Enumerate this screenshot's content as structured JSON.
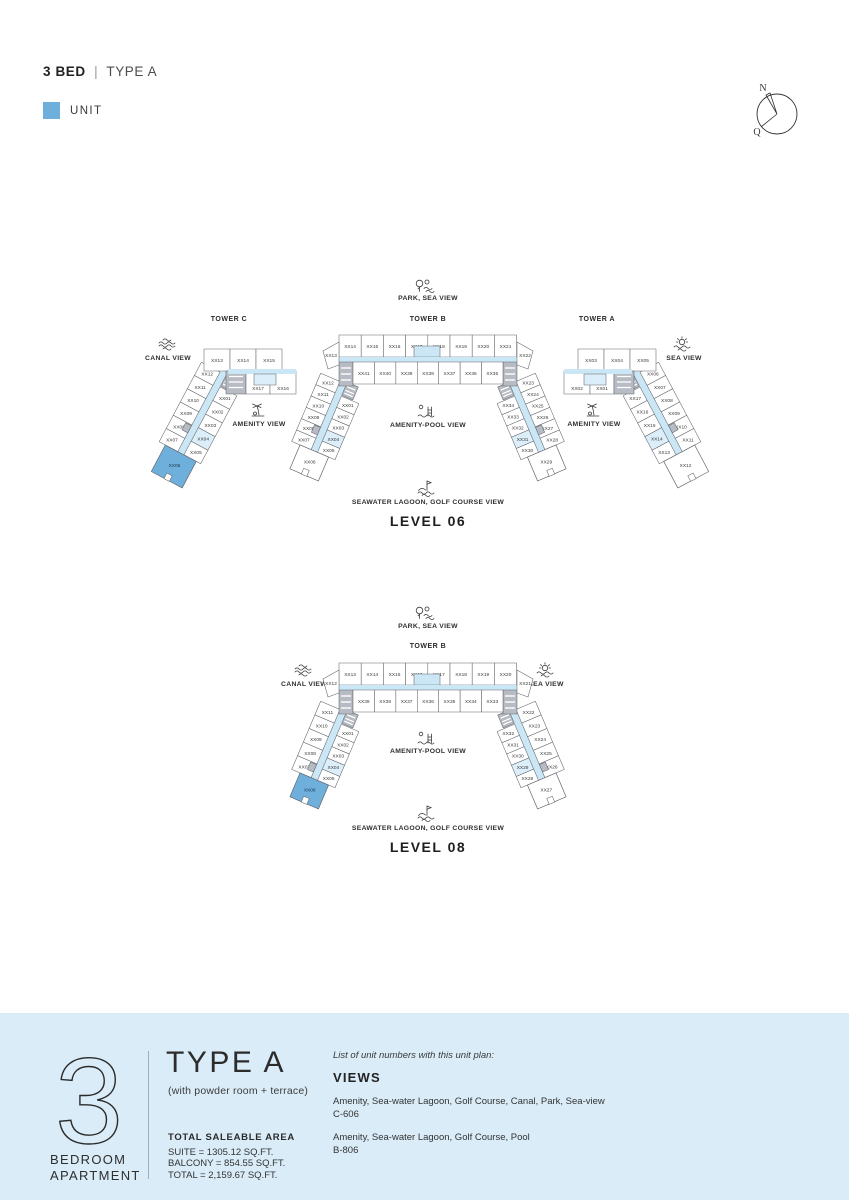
{
  "header": {
    "title_bold": "3 BED",
    "title_divider": "|",
    "title_light": "TYPE A",
    "legend_label": "UNIT"
  },
  "compass": {
    "north": "N",
    "q": "Q"
  },
  "colors": {
    "unit_highlight": "#6fafdc",
    "corridor": "#cbe6f5",
    "unit_light": "#dceef9",
    "core": "#b7bbc3",
    "outline": "#63666c",
    "ink": "#3a3a3a",
    "footer_bg": "#d9ecf8"
  },
  "levels": [
    {
      "name": "LEVEL 06",
      "park_view": "PARK, SEA VIEW",
      "lagoon_view": "SEAWATER LAGOON, GOLF COURSE VIEW",
      "amenity_pool_view": "AMENITY-POOL VIEW",
      "towers": [
        {
          "id": "c",
          "label": "TOWER C",
          "side_view": "CANAL VIEW",
          "amenity_view": "AMENITY VIEW",
          "top_row": [
            "XX13",
            "XX14",
            "XX15"
          ],
          "second_row": [
            "XX17",
            "XX16"
          ],
          "outer": [
            "XX12",
            "XX11",
            "XX10",
            "XX09",
            "XX08",
            "XX07"
          ],
          "inner": [
            "XX01",
            "XX02",
            "XX03",
            "XX04",
            "XX05"
          ],
          "end": "XX06",
          "end_highlight": true
        },
        {
          "id": "b",
          "label": "TOWER B",
          "top_row": [
            "XX14",
            "XX15",
            "XX16",
            "XX17",
            "XX18",
            "XX19",
            "XX20",
            "XX21"
          ],
          "mid_row": [
            "XX41",
            "XX40",
            "XX39",
            "XX38",
            "XX37",
            "XX36",
            "XX35"
          ],
          "left_corner": "XX13",
          "right_corner": "XX22",
          "left_outer": [
            "XX12",
            "XX11",
            "XX10",
            "XX09",
            "XX08",
            "XX07"
          ],
          "left_inner": [
            "XX01",
            "XX02",
            "XX03",
            "XX04",
            "XX05"
          ],
          "left_end": "XX06",
          "left_end_highlight": false,
          "right_outer": [
            "XX23",
            "XX24",
            "XX25",
            "XX26",
            "XX27",
            "XX28"
          ],
          "right_inner": [
            "XX34",
            "XX33",
            "XX32",
            "XX31",
            "XX30"
          ],
          "right_end": "XX29",
          "right_end_highlight": false
        },
        {
          "id": "a",
          "label": "TOWER A",
          "side_view": "SEA VIEW",
          "amenity_view": "AMENITY VIEW",
          "top_row": [
            "XX03",
            "XX04",
            "XX05"
          ],
          "second_row": [
            "XX02",
            "XX01"
          ],
          "outer": [
            "XX06",
            "XX07",
            "XX08",
            "XX09",
            "XX10",
            "XX11"
          ],
          "inner": [
            "XX17",
            "XX16",
            "XX15",
            "XX14",
            "XX13"
          ],
          "end": "XX12",
          "end_highlight": false
        }
      ]
    },
    {
      "name": "LEVEL 08",
      "park_view": "PARK, SEA VIEW",
      "lagoon_view": "SEAWATER LAGOON, GOLF COURSE VIEW",
      "amenity_pool_view": "AMENITY-POOL VIEW",
      "canal_view": "CANAL VIEW",
      "sea_view": "SEA VIEW",
      "towers": [
        {
          "id": "b",
          "label": "TOWER B",
          "top_row": [
            "XX13",
            "XX14",
            "XX15",
            "XX16",
            "XX17",
            "XX18",
            "XX19",
            "XX20"
          ],
          "mid_row": [
            "XX39",
            "XX38",
            "XX37",
            "XX36",
            "XX35",
            "XX34",
            "XX33"
          ],
          "left_corner": "XX12",
          "right_corner": "XX21",
          "left_outer": [
            "XX11",
            "XX10",
            "XX09",
            "XX08",
            "XX07"
          ],
          "left_inner": [
            "XX01",
            "XX02",
            "XX03",
            "XX04",
            "XX05"
          ],
          "left_end": "XX06",
          "left_end_highlight": true,
          "right_outer": [
            "XX22",
            "XX23",
            "XX24",
            "XX25",
            "XX26"
          ],
          "right_inner": [
            "XX32",
            "XX31",
            "XX30",
            "XX29",
            "XX28"
          ],
          "right_end": "XX27",
          "right_end_highlight": false
        }
      ]
    }
  ],
  "footer": {
    "big_number": "3",
    "unit_type_lines": [
      "BEDROOM",
      "APARTMENT"
    ],
    "type_title": "TYPE A",
    "type_subtitle": "(with powder room + terrace)",
    "area_title": "TOTAL SALEABLE AREA",
    "area_lines": [
      "SUITE = 1305.12 SQ.FT.",
      "BALCONY = 854.55 SQ.FT.",
      "TOTAL = 2,159.67 SQ.FT."
    ],
    "list_intro": "List of unit numbers with this unit plan:",
    "views_title": "VIEWS",
    "view_groups": [
      {
        "views": "Amenity, Sea-water Lagoon, Golf Course, Canal, Park, Sea-view",
        "unit": "C-606"
      },
      {
        "views": "Amenity, Sea-water Lagoon, Golf Course, Pool",
        "unit": "B-806"
      }
    ]
  }
}
